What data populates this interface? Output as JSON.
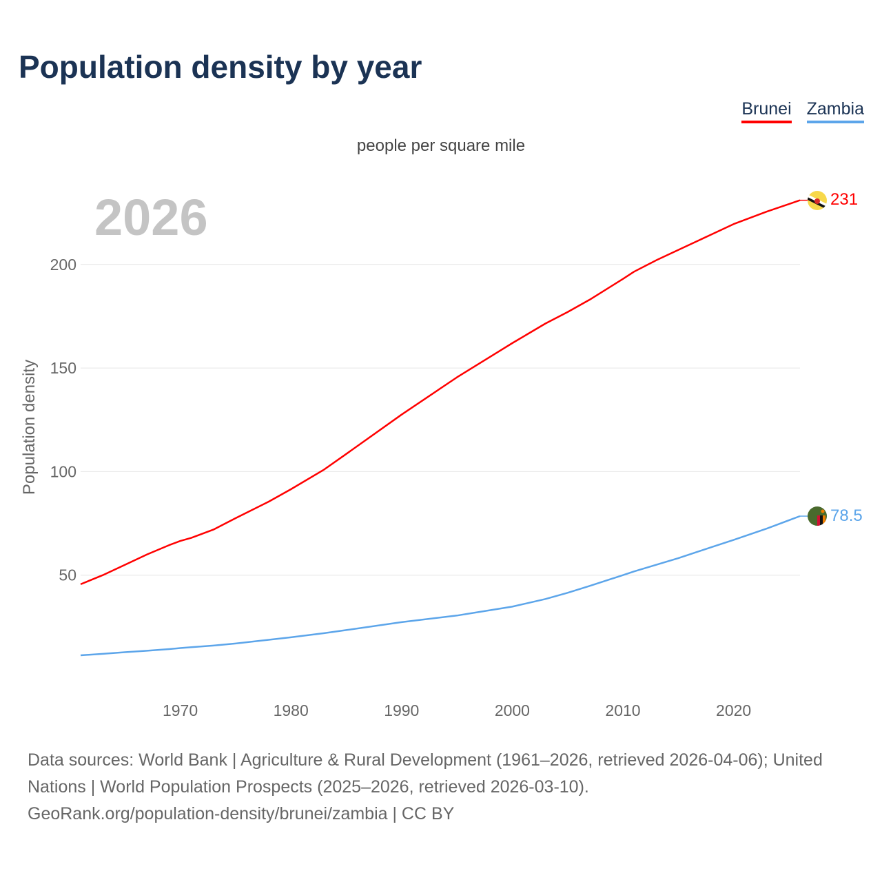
{
  "title": "Population density by year",
  "legend": [
    {
      "label": "Brunei",
      "color": "#ff0000"
    },
    {
      "label": "Zambia",
      "color": "#5ca5ea"
    }
  ],
  "subtitle": "people per square mile",
  "year_watermark": "2026",
  "footer": {
    "line1": "Data sources: World Bank | Agriculture & Rural Development (1961–2026, retrieved 2026-04-06); United Nations | World Population Prospects (2025–2026, retrieved 2026-03-10).",
    "line2": "GeoRank.org/population-density/brunei/zambia | CC BY"
  },
  "chart_data": {
    "type": "line",
    "title": "Population density by year",
    "xlabel": "",
    "ylabel": "Population density",
    "xlim": [
      1961,
      2026
    ],
    "ylim": [
      0,
      235
    ],
    "xticks": [
      1970,
      1980,
      1990,
      2000,
      2010,
      2020
    ],
    "yticks": [
      50,
      100,
      150,
      200
    ],
    "grid": true,
    "legend_placement": "top-right",
    "x": [
      1961,
      1963,
      1965,
      1967,
      1969,
      1970,
      1971,
      1973,
      1975,
      1978,
      1980,
      1983,
      1985,
      1990,
      1995,
      2000,
      2003,
      2005,
      2007,
      2010,
      2011,
      2013,
      2015,
      2018,
      2020,
      2023,
      2026
    ],
    "series": [
      {
        "name": "Brunei",
        "color": "#ff0000",
        "end_label": "231",
        "values": [
          45.6,
          50,
          55,
          60,
          64.5,
          66.5,
          68,
          72,
          77.5,
          85.5,
          91.5,
          101,
          108.5,
          127.5,
          145.5,
          162,
          171.5,
          177,
          183,
          193,
          196.5,
          202,
          207,
          214.5,
          219.5,
          225.5,
          231
        ]
      },
      {
        "name": "Zambia",
        "color": "#5ca5ea",
        "end_label": "78.5",
        "values": [
          11.3,
          12,
          12.8,
          13.5,
          14.3,
          14.8,
          15.2,
          16,
          17,
          18.8,
          20,
          22,
          23.5,
          27.3,
          30.5,
          34.8,
          38.5,
          41.5,
          44.8,
          50,
          51.8,
          55,
          58.2,
          63.5,
          67,
          72.5,
          78.5
        ]
      }
    ]
  }
}
